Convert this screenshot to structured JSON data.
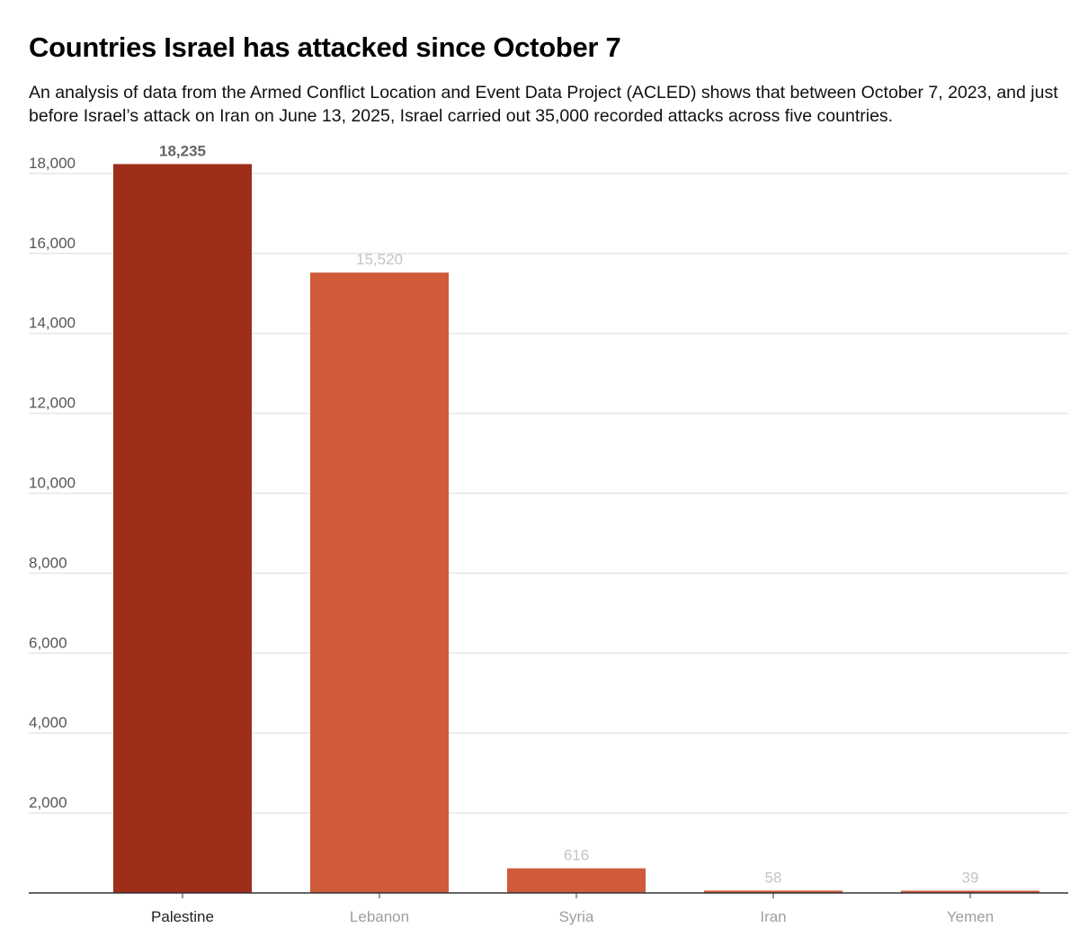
{
  "chart_data": {
    "type": "bar",
    "title": "Countries Israel has attacked since October 7",
    "subtitle": "An analysis of data from the Armed Conflict Location and Event Data Project (ACLED) shows that between October 7, 2023, and just before Israel’s attack on Iran on June 13, 2025, Israel carried out 35,000 recorded attacks across five countries.",
    "xlabel": "",
    "ylabel": "",
    "categories": [
      "Palestine",
      "Lebanon",
      "Syria",
      "Iran",
      "Yemen"
    ],
    "values": [
      18235,
      15520,
      616,
      58,
      39
    ],
    "value_labels": [
      "18,235",
      "15,520",
      "616",
      "58",
      "39"
    ],
    "highlighted_category": "Palestine",
    "ylim": [
      0,
      18000
    ],
    "yticks": [
      2000,
      4000,
      6000,
      8000,
      10000,
      12000,
      14000,
      16000,
      18000
    ],
    "ytick_labels": [
      "2,000",
      "4,000",
      "6,000",
      "8,000",
      "10,000",
      "12,000",
      "14,000",
      "16,000",
      "18,000"
    ],
    "grid": true,
    "legend": "none"
  },
  "colors": {
    "highlight_bar": "#9e2d19",
    "bar": "#cf5b3b",
    "gridline": "#e6e6e6",
    "axis": "#333333",
    "highlight_value_label": "#666666",
    "value_label": "#c4c4c4",
    "highlight_category_label": "#222222",
    "category_label": "#9e9e9e",
    "tick_label": "#555555"
  }
}
